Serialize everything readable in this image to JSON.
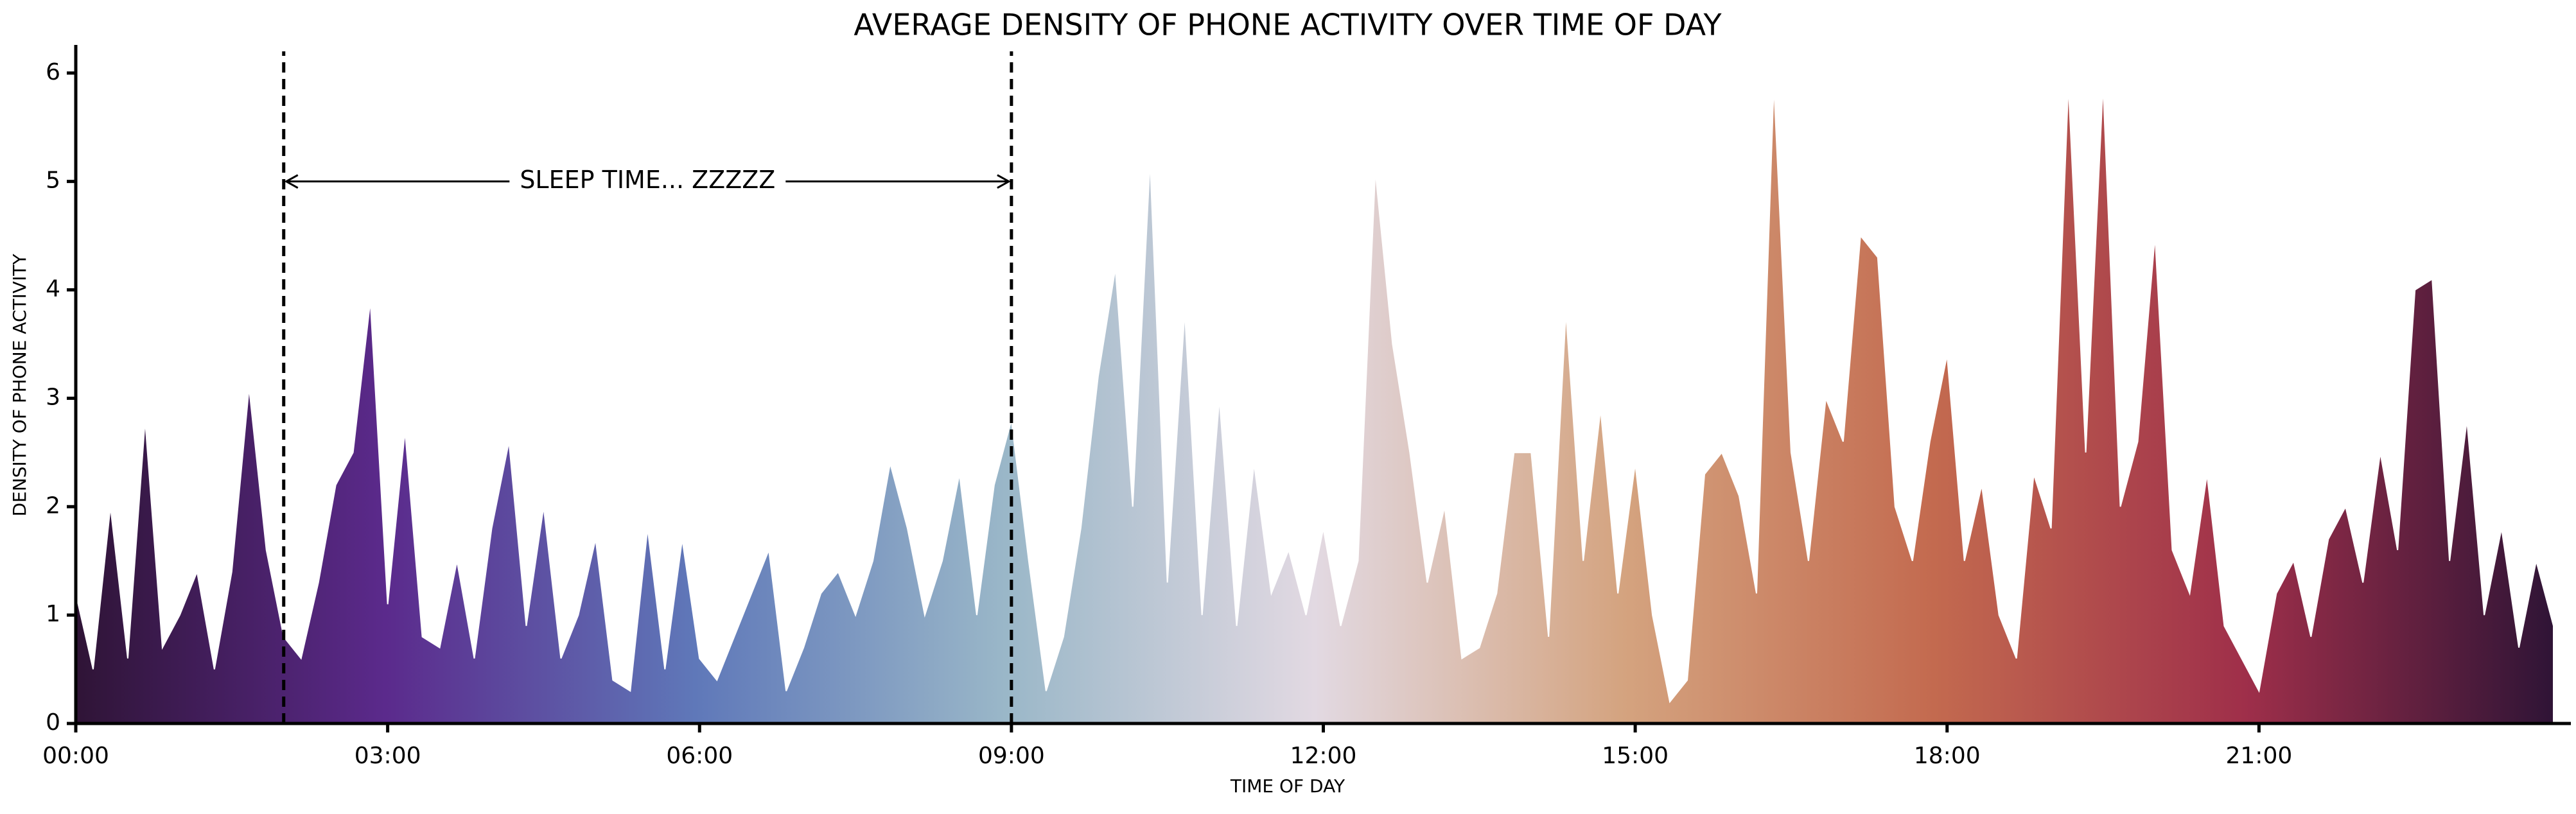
{
  "chart_data": {
    "type": "area",
    "title": "AVERAGE DENSITY OF PHONE ACTIVITY OVER TIME OF DAY",
    "xlabel": "TIME OF DAY",
    "ylabel": "DENSITY OF PHONE ACTIVITY",
    "x": [
      0,
      10,
      20,
      30,
      40,
      50,
      60,
      70,
      80,
      90,
      100,
      110,
      120,
      130,
      140,
      150,
      160,
      170,
      180,
      190,
      200,
      210,
      220,
      230,
      240,
      250,
      260,
      270,
      280,
      290,
      300,
      310,
      320,
      330,
      340,
      350,
      360,
      370,
      380,
      390,
      400,
      410,
      420,
      430,
      440,
      450,
      460,
      470,
      480,
      490,
      500,
      510,
      520,
      530,
      540,
      550,
      560,
      570,
      580,
      590,
      600,
      610,
      620,
      630,
      640,
      650,
      660,
      670,
      680,
      690,
      700,
      710,
      720,
      730,
      740,
      750,
      760,
      770,
      780,
      790,
      800,
      810,
      820,
      830,
      840,
      850,
      860,
      870,
      880,
      890,
      900,
      910,
      920,
      930,
      940,
      950,
      960,
      970,
      980,
      990,
      1000,
      1010,
      1020,
      1030,
      1040,
      1050,
      1060,
      1070,
      1080,
      1090,
      1100,
      1110,
      1120,
      1130,
      1140,
      1150,
      1160,
      1170,
      1180,
      1190,
      1200,
      1210,
      1220,
      1230,
      1240,
      1250,
      1260,
      1270,
      1280,
      1290,
      1300,
      1310,
      1320,
      1330,
      1340,
      1350,
      1360,
      1370,
      1380,
      1390,
      1400,
      1410,
      1420,
      1430
    ],
    "values": [
      1.2,
      0.5,
      2.0,
      0.6,
      2.8,
      0.7,
      1.0,
      1.4,
      0.5,
      1.4,
      3.1,
      1.6,
      0.8,
      0.6,
      1.3,
      2.2,
      2.5,
      3.9,
      1.1,
      2.7,
      0.8,
      0.7,
      1.5,
      0.6,
      1.8,
      2.6,
      0.9,
      2.0,
      0.6,
      1.0,
      1.7,
      0.4,
      0.3,
      1.8,
      0.5,
      1.7,
      0.6,
      0.4,
      0.8,
      1.2,
      1.6,
      0.3,
      0.7,
      1.2,
      1.4,
      1.0,
      1.5,
      2.4,
      1.8,
      1.0,
      1.5,
      2.3,
      1.0,
      2.2,
      2.8,
      1.5,
      0.3,
      0.8,
      1.8,
      3.2,
      4.2,
      2.0,
      5.2,
      1.3,
      3.8,
      1.0,
      3.0,
      0.9,
      2.4,
      1.2,
      1.6,
      1.0,
      1.8,
      0.9,
      1.5,
      5.1,
      3.5,
      2.5,
      1.3,
      2.0,
      0.6,
      0.7,
      1.2,
      2.5,
      2.5,
      0.8,
      3.8,
      1.5,
      2.9,
      1.2,
      2.4,
      1.0,
      0.2,
      0.4,
      2.3,
      2.5,
      2.1,
      1.2,
      5.9,
      2.5,
      1.5,
      3.0,
      2.6,
      4.5,
      4.3,
      2.0,
      1.5,
      2.6,
      3.4,
      1.5,
      2.2,
      1.0,
      0.6,
      2.3,
      1.8,
      5.9,
      2.5,
      5.9,
      2.0,
      2.6,
      4.5,
      1.6,
      1.2,
      2.3,
      0.9,
      0.6,
      0.3,
      1.2,
      1.5,
      0.8,
      1.7,
      2.0,
      1.3,
      2.5,
      1.6,
      4.0,
      4.1,
      1.5,
      2.8,
      1.0,
      1.8,
      0.7,
      1.5,
      0.9
    ],
    "colormap": [
      "#2f1436",
      "#5b2a8c",
      "#5f78b9",
      "#9ab7c8",
      "#e2d9e2",
      "#d4a37f",
      "#c36a4f",
      "#9f2f4a",
      "#2f1436"
    ],
    "xlim": [
      0,
      1440
    ],
    "xticks": [
      {
        "value": 0,
        "label": "00:00"
      },
      {
        "value": 180,
        "label": "03:00"
      },
      {
        "value": 360,
        "label": "06:00"
      },
      {
        "value": 540,
        "label": "09:00"
      },
      {
        "value": 720,
        "label": "12:00"
      },
      {
        "value": 900,
        "label": "15:00"
      },
      {
        "value": 1080,
        "label": "18:00"
      },
      {
        "value": 1260,
        "label": "21:00"
      }
    ],
    "ylim": [
      0,
      6.2
    ],
    "yticks": [
      0,
      1,
      2,
      3,
      4,
      5,
      6
    ],
    "annotation": {
      "text": "SLEEP TIME... ZZZZZ",
      "x": [
        120,
        540
      ],
      "y": 5
    }
  }
}
